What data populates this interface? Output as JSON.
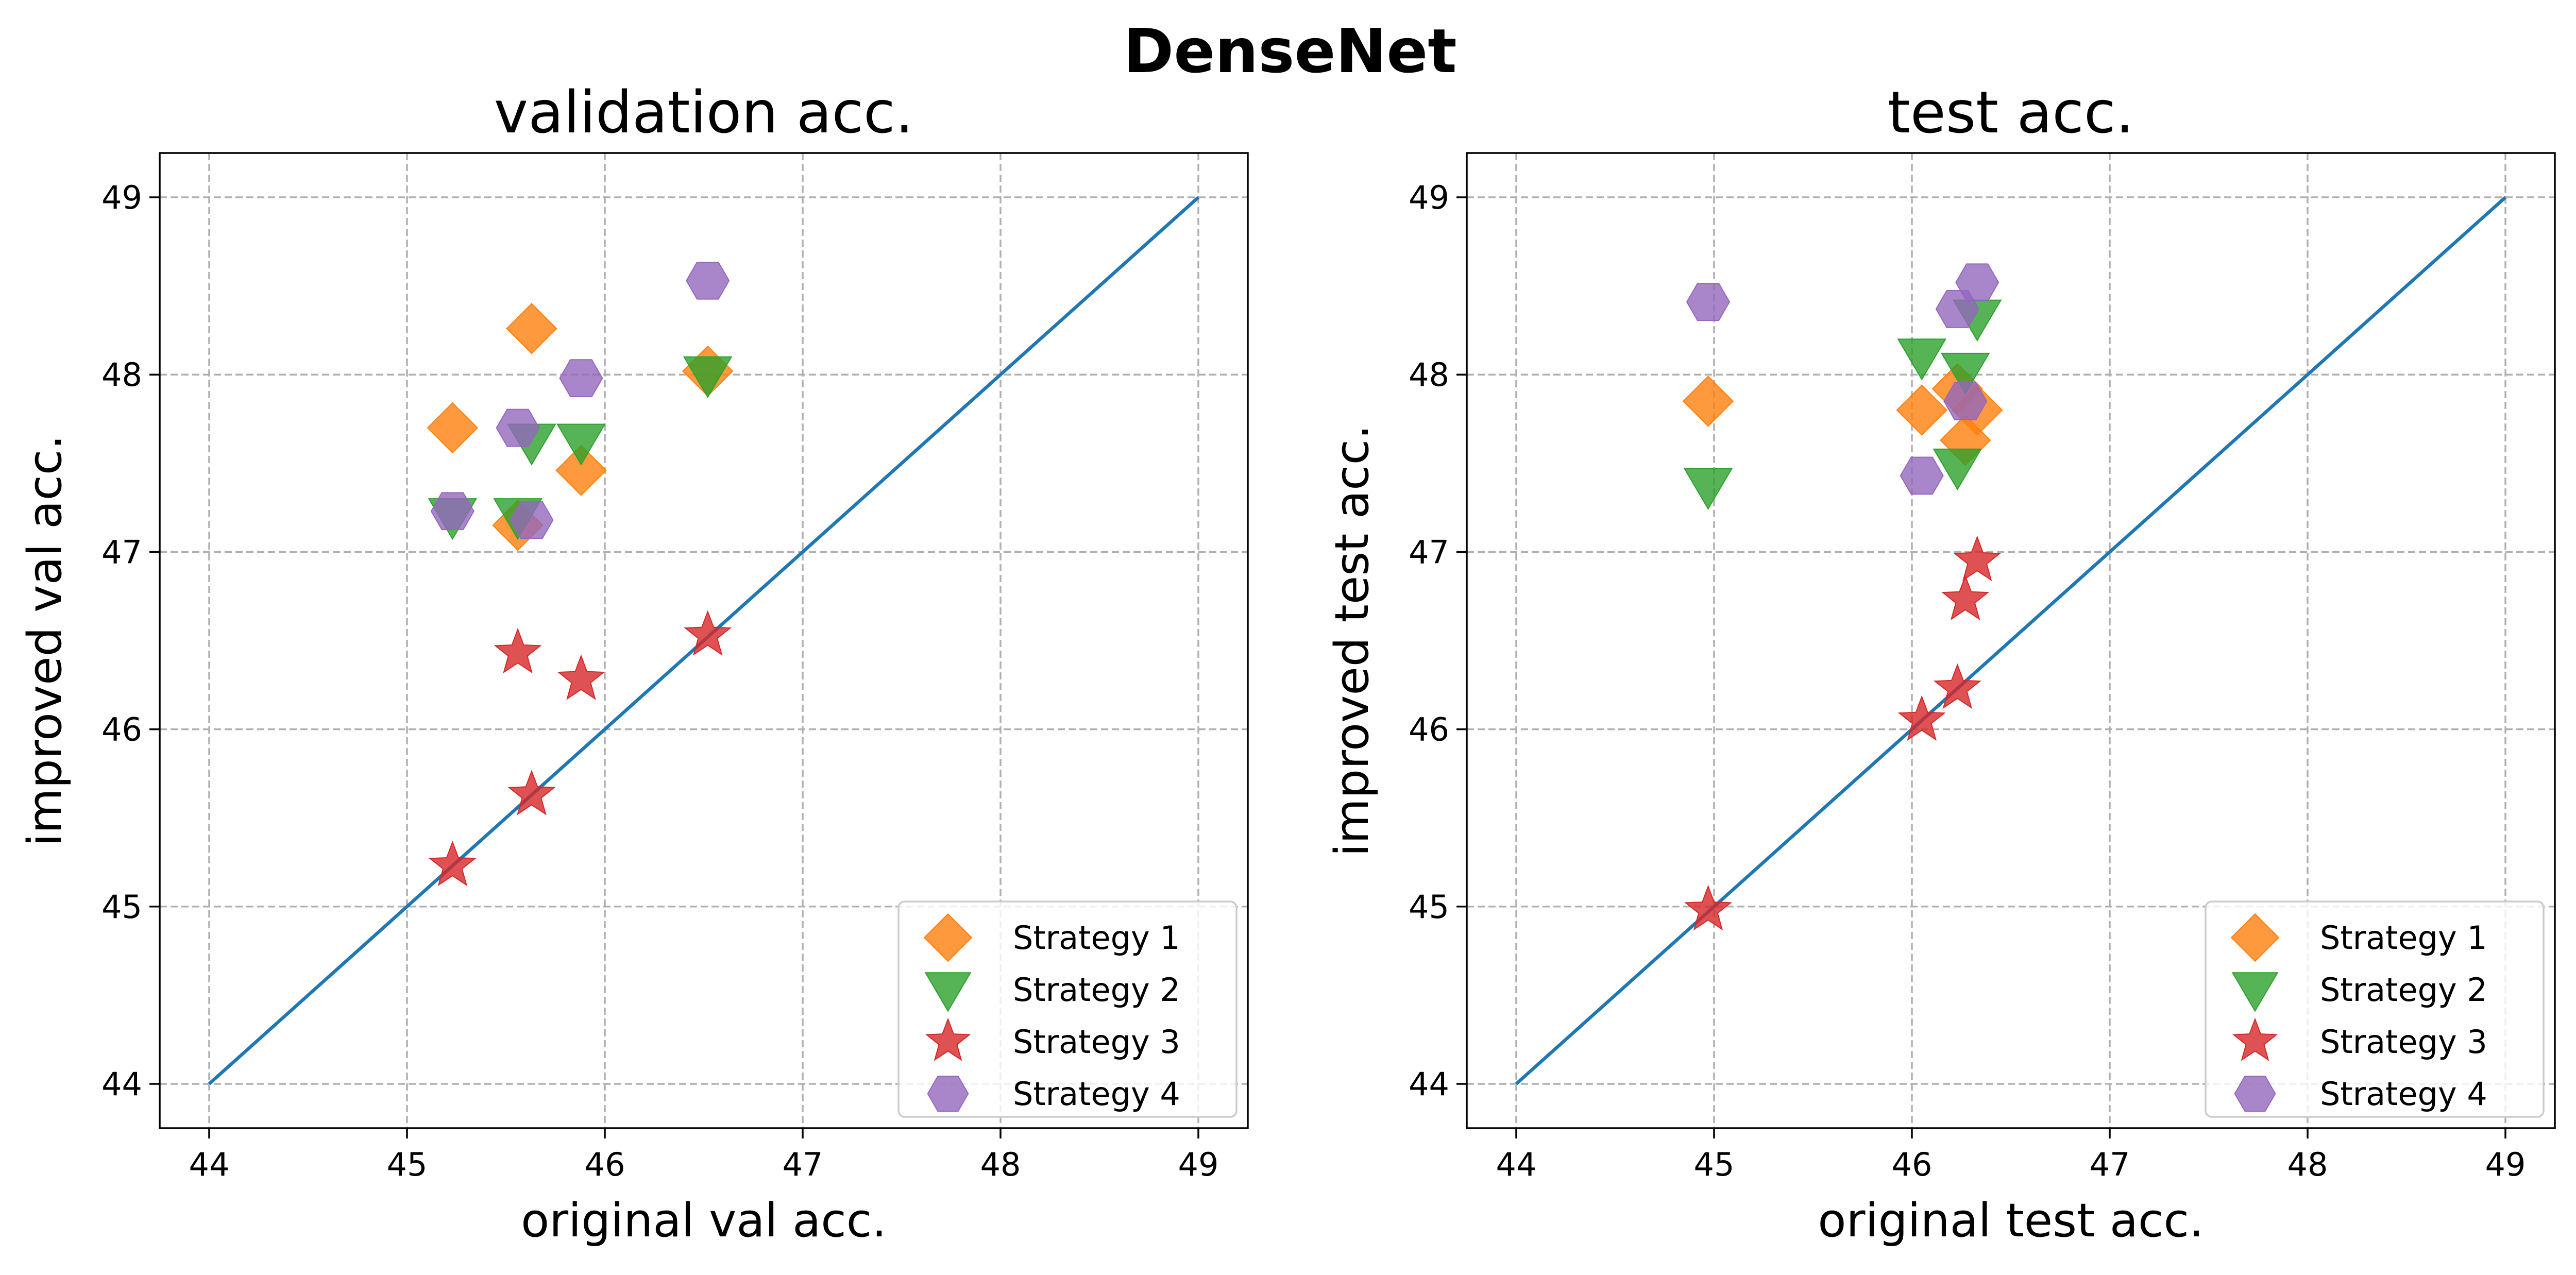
{
  "suptitle": "DenseNet",
  "legend_location": "lower-right",
  "chart_data": [
    {
      "type": "scatter",
      "title": "validation acc.",
      "xlabel": "original val acc.",
      "ylabel": "improved val acc.",
      "xlim": [
        43.75,
        49.25
      ],
      "ylim": [
        43.75,
        49.25
      ],
      "xticks": [
        44,
        45,
        46,
        47,
        48,
        49
      ],
      "yticks": [
        44,
        45,
        46,
        47,
        48,
        49
      ],
      "xtick_labels": [
        "44",
        "45",
        "46",
        "47",
        "48",
        "49"
      ],
      "ytick_labels": [
        "44",
        "45",
        "46",
        "47",
        "48",
        "49"
      ],
      "grid": true,
      "reference_line": {
        "x": [
          44,
          49
        ],
        "y": [
          44,
          49
        ],
        "color": "#1f77b4"
      },
      "legend_location": "lower-right",
      "series": [
        {
          "name": "Strategy 1",
          "marker": "diamond",
          "color": "#ff7f0e",
          "points": [
            [
              45.23,
              47.7
            ],
            [
              45.56,
              47.15
            ],
            [
              45.63,
              48.26
            ],
            [
              45.88,
              47.46
            ],
            [
              46.52,
              48.02
            ]
          ]
        },
        {
          "name": "Strategy 2",
          "marker": "triangle-down",
          "color": "#2ca02c",
          "points": [
            [
              45.23,
              47.2
            ],
            [
              45.56,
              47.2
            ],
            [
              45.63,
              47.62
            ],
            [
              45.88,
              47.62
            ],
            [
              46.52,
              48.0
            ]
          ]
        },
        {
          "name": "Strategy 3",
          "marker": "star",
          "color": "#d62728",
          "points": [
            [
              45.23,
              45.23
            ],
            [
              45.56,
              46.43
            ],
            [
              45.63,
              45.63
            ],
            [
              45.88,
              46.28
            ],
            [
              46.52,
              46.53
            ]
          ]
        },
        {
          "name": "Strategy 4",
          "marker": "hexagon",
          "color": "#9467bd",
          "points": [
            [
              45.23,
              47.23
            ],
            [
              45.56,
              47.7
            ],
            [
              45.63,
              47.18
            ],
            [
              45.88,
              47.98
            ],
            [
              46.52,
              48.53
            ]
          ]
        }
      ]
    },
    {
      "type": "scatter",
      "title": "test acc.",
      "xlabel": "original test acc.",
      "ylabel": "improved test acc.",
      "xlim": [
        43.75,
        49.25
      ],
      "ylim": [
        43.75,
        49.25
      ],
      "xticks": [
        44,
        45,
        46,
        47,
        48,
        49
      ],
      "yticks": [
        44,
        45,
        46,
        47,
        48,
        49
      ],
      "xtick_labels": [
        "44",
        "45",
        "46",
        "47",
        "48",
        "49"
      ],
      "ytick_labels": [
        "44",
        "45",
        "46",
        "47",
        "48",
        "49"
      ],
      "grid": true,
      "reference_line": {
        "x": [
          44,
          49
        ],
        "y": [
          44,
          49
        ],
        "color": "#1f77b4"
      },
      "legend_location": "lower-right",
      "series": [
        {
          "name": "Strategy 1",
          "marker": "diamond",
          "color": "#ff7f0e",
          "points": [
            [
              44.97,
              47.85
            ],
            [
              46.05,
              47.8
            ],
            [
              46.23,
              47.92
            ],
            [
              46.27,
              47.63
            ],
            [
              46.33,
              47.8
            ]
          ]
        },
        {
          "name": "Strategy 2",
          "marker": "triangle-down",
          "color": "#2ca02c",
          "points": [
            [
              44.97,
              47.37
            ],
            [
              46.05,
              48.1
            ],
            [
              46.23,
              47.48
            ],
            [
              46.27,
              48.02
            ],
            [
              46.33,
              48.32
            ]
          ]
        },
        {
          "name": "Strategy 3",
          "marker": "star",
          "color": "#d62728",
          "points": [
            [
              44.97,
              44.98
            ],
            [
              46.05,
              46.05
            ],
            [
              46.23,
              46.23
            ],
            [
              46.27,
              46.73
            ],
            [
              46.33,
              46.95
            ]
          ]
        },
        {
          "name": "Strategy 4",
          "marker": "hexagon",
          "color": "#9467bd",
          "points": [
            [
              44.97,
              48.41
            ],
            [
              46.05,
              47.43
            ],
            [
              46.23,
              48.37
            ],
            [
              46.27,
              47.85
            ],
            [
              46.33,
              48.52
            ]
          ]
        }
      ]
    }
  ]
}
